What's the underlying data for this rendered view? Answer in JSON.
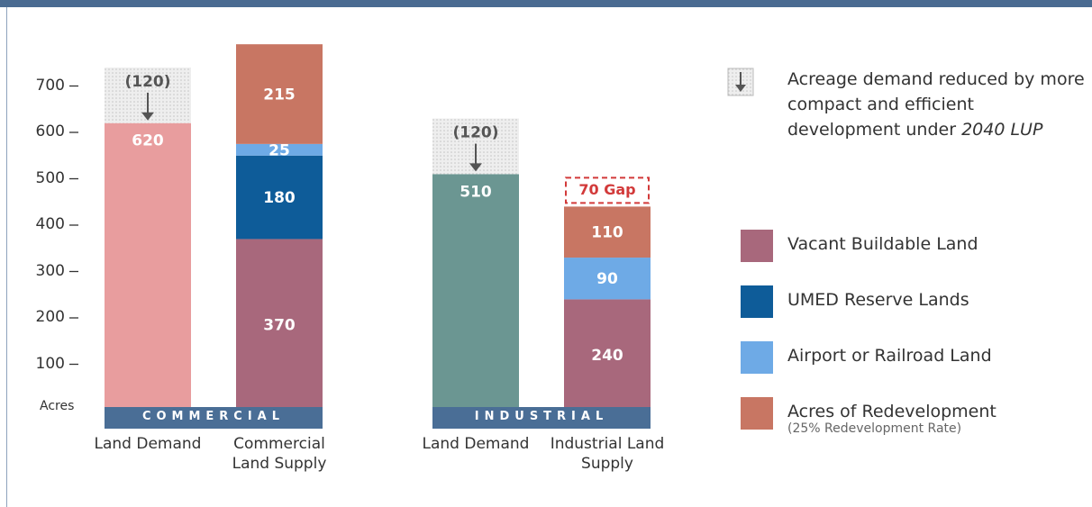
{
  "chart_data": {
    "type": "stacked-bar",
    "y_label": "Acres",
    "ylim": [
      0,
      800
    ],
    "yticks": [
      100,
      200,
      300,
      400,
      500,
      600,
      700
    ],
    "series": [
      {
        "name": "Vacant Buildable Land",
        "color": "#a8687c"
      },
      {
        "name": "UMED Reserve Lands",
        "color": "#0e5c99"
      },
      {
        "name": "Airport or Railroad Land",
        "color": "#6eaae6"
      },
      {
        "name": "Acres of Redevelopment",
        "color": "#c87663",
        "note": "(25% Redevelopment Rate)"
      }
    ],
    "reduction_note": "Acreage demand reduced by more compact and efficient development under",
    "reduction_note_emphasis": "2040 LUP",
    "groups": [
      {
        "name": "COMMERCIAL",
        "demand": {
          "category": "Land Demand",
          "value": 620,
          "color": "#e89d9e",
          "reduction": 120,
          "reduction_label": "(120)"
        },
        "supply": {
          "category": "Commercial Land Supply",
          "values": [
            370,
            180,
            25,
            215
          ]
        }
      },
      {
        "name": "INDUSTRIAL",
        "demand": {
          "category": "Land Demand",
          "value": 510,
          "color": "#6b9692",
          "reduction": 120,
          "reduction_label": "(120)"
        },
        "supply": {
          "category": "Industrial Land Supply",
          "values": [
            240,
            null,
            90,
            110
          ]
        },
        "gap": {
          "value": 70,
          "label": "70 Gap"
        }
      }
    ]
  }
}
